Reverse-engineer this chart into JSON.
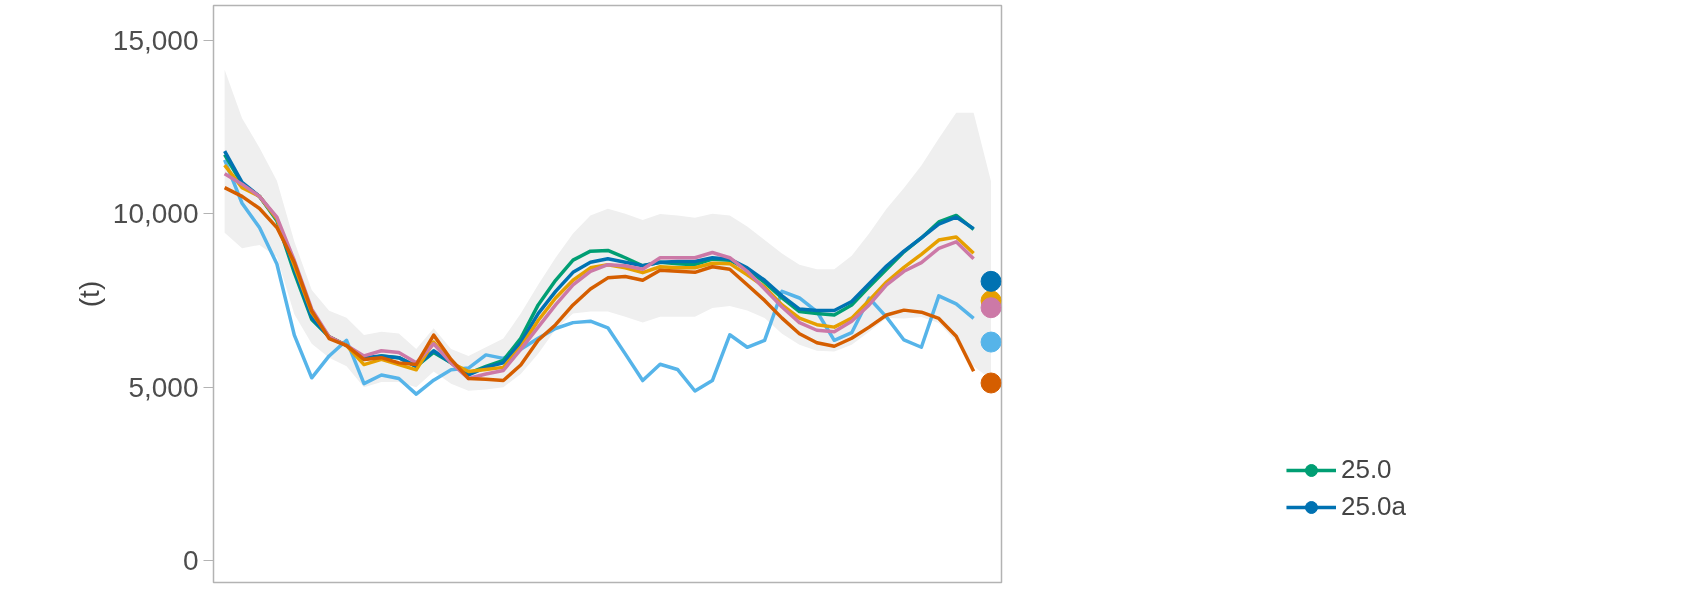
{
  "chart_data": {
    "type": "line",
    "ylabel": "(t)",
    "categories": [
      null,
      null,
      null,
      null,
      null,
      null,
      null,
      null,
      null,
      null,
      null,
      null,
      null,
      null,
      null,
      null,
      null,
      null,
      null,
      null,
      null,
      null,
      null,
      null,
      null,
      null,
      null,
      null,
      null,
      null,
      null,
      null,
      null,
      null,
      null,
      null,
      null,
      null,
      null,
      null,
      null,
      null,
      null,
      null,
      null
    ],
    "ylim": [
      -630,
      16000
    ],
    "yticks": [
      0,
      {
        "value": 5000,
        "label": "5,000"
      },
      {
        "value": 10000,
        "label": "10,000"
      },
      {
        "value": 15000,
        "label": "15,000"
      }
    ],
    "grid": false,
    "legend": "bottom right",
    "tick_labels": "y",
    "series": [
      {
        "color": "#56b4e9",
        "values": [
          11550,
          10300,
          9600,
          8550,
          6500,
          5270,
          5900,
          6350,
          5100,
          5350,
          5250,
          4800,
          5200,
          5500,
          5550,
          5930,
          5830,
          6090,
          6410,
          6690,
          6860,
          6900,
          6710,
          5960,
          5190,
          5660,
          5510,
          4890,
          5190,
          6510,
          6150,
          6350,
          7760,
          7570,
          7180,
          6350,
          6570,
          7570,
          7020,
          6360,
          6150,
          7630,
          7400,
          6980,
          null
        ],
        "lower": [
          9450,
          9000,
          9100,
          8750,
          7100,
          6250,
          5850,
          5600,
          5000,
          5150,
          5150,
          5000,
          5450,
          5100,
          4900,
          4930,
          5000,
          5380,
          5960,
          6670,
          7120,
          7180,
          7180,
          7030,
          6860,
          7030,
          7030,
          7030,
          7280,
          7340,
          7210,
          6990,
          6540,
          6220,
          6050,
          6030,
          6220,
          6600,
          6990,
          6980,
          7020,
          6850,
          6310,
          5600,
          5220
        ],
        "upper": [
          14150,
          12750,
          11900,
          10950,
          9200,
          7800,
          7200,
          7000,
          6500,
          6600,
          6550,
          6100,
          6700,
          6100,
          5900,
          6150,
          6400,
          7120,
          7950,
          8730,
          9430,
          9950,
          10140,
          10000,
          9820,
          9990,
          9950,
          9880,
          10000,
          9950,
          9630,
          9240,
          8850,
          8530,
          8400,
          8400,
          8790,
          9430,
          10140,
          10740,
          11390,
          12170,
          12910,
          12910,
          10930
        ]
      },
      {
        "name": "25.0",
        "color": "#009e73",
        "values": [
          11700,
          10850,
          10500,
          9800,
          8300,
          6950,
          6450,
          6200,
          5800,
          5900,
          5850,
          5600,
          6000,
          5700,
          5400,
          5600,
          5770,
          6410,
          7370,
          8080,
          8660,
          8920,
          8940,
          8730,
          8500,
          8600,
          8560,
          8530,
          8690,
          8660,
          8400,
          8020,
          7570,
          7180,
          7120,
          7080,
          7370,
          7890,
          8400,
          8900,
          9300,
          9760,
          9950,
          9550,
          null
        ]
      },
      {
        "name": "25.0a",
        "color": "#0072b2",
        "values": [
          11800,
          10900,
          10500,
          9850,
          8400,
          7000,
          6450,
          6200,
          5850,
          5900,
          5850,
          5600,
          6050,
          5700,
          5350,
          5570,
          5700,
          6280,
          7120,
          7760,
          8310,
          8600,
          8700,
          8600,
          8500,
          8600,
          8620,
          8620,
          8730,
          8690,
          8440,
          8080,
          7630,
          7250,
          7210,
          7210,
          7470,
          7980,
          8490,
          8920,
          9300,
          9700,
          9900,
          9570,
          null
        ]
      },
      {
        "color": "#e69f00",
        "values": [
          11400,
          10750,
          10500,
          9850,
          8500,
          7150,
          6450,
          6200,
          5650,
          5800,
          5650,
          5500,
          6300,
          5700,
          5450,
          5510,
          5570,
          6150,
          6920,
          7570,
          8080,
          8440,
          8530,
          8440,
          8300,
          8470,
          8440,
          8440,
          8570,
          8560,
          8240,
          7890,
          7370,
          6990,
          6800,
          6730,
          6990,
          7500,
          8030,
          8450,
          8830,
          9240,
          9330,
          8860,
          null
        ]
      },
      {
        "color": "#cc79a7",
        "values": [
          11150,
          10850,
          10500,
          9900,
          8650,
          7250,
          6450,
          6200,
          5900,
          6050,
          6000,
          5700,
          6250,
          5700,
          5250,
          5380,
          5480,
          6090,
          6730,
          7370,
          7950,
          8340,
          8530,
          8500,
          8400,
          8730,
          8730,
          8730,
          8880,
          8730,
          8340,
          7830,
          7310,
          6860,
          6640,
          6600,
          6900,
          7370,
          7950,
          8340,
          8590,
          9000,
          9190,
          8700,
          null
        ]
      },
      {
        "color": "#d55e00",
        "values": [
          10750,
          10500,
          10150,
          9600,
          8600,
          7200,
          6400,
          6200,
          5800,
          5850,
          5700,
          5650,
          6500,
          5800,
          5250,
          5230,
          5190,
          5640,
          6350,
          6800,
          7370,
          7830,
          8150,
          8190,
          8080,
          8370,
          8340,
          8310,
          8470,
          8400,
          7950,
          7500,
          6990,
          6540,
          6280,
          6180,
          6410,
          6730,
          7080,
          7220,
          7160,
          6980,
          6470,
          5460,
          null
        ]
      },
      {
        "type": "scatter",
        "marker": "circle",
        "color": "#56b4e9",
        "values": [
          null,
          null,
          null,
          null,
          null,
          null,
          null,
          null,
          null,
          null,
          null,
          null,
          null,
          null,
          null,
          null,
          null,
          null,
          null,
          null,
          null,
          null,
          null,
          null,
          null,
          null,
          null,
          null,
          null,
          null,
          null,
          null,
          null,
          null,
          null,
          null,
          null,
          null,
          null,
          null,
          null,
          null,
          null,
          null,
          6300
        ]
      },
      {
        "type": "scatter",
        "marker": "circle",
        "color": "#d55e00",
        "values": [
          null,
          null,
          null,
          null,
          null,
          null,
          null,
          null,
          null,
          null,
          null,
          null,
          null,
          null,
          null,
          null,
          null,
          null,
          null,
          null,
          null,
          null,
          null,
          null,
          null,
          null,
          null,
          null,
          null,
          null,
          null,
          null,
          null,
          null,
          null,
          null,
          null,
          null,
          null,
          null,
          null,
          null,
          null,
          null,
          5120
        ]
      },
      {
        "type": "scatter",
        "marker": "circle",
        "color": "#e69f00",
        "values": [
          null,
          null,
          null,
          null,
          null,
          null,
          null,
          null,
          null,
          null,
          null,
          null,
          null,
          null,
          null,
          null,
          null,
          null,
          null,
          null,
          null,
          null,
          null,
          null,
          null,
          null,
          null,
          null,
          null,
          null,
          null,
          null,
          null,
          null,
          null,
          null,
          null,
          null,
          null,
          null,
          null,
          null,
          null,
          null,
          7490
        ]
      },
      {
        "type": "scatter",
        "marker": "circle",
        "color": "#cc79a7",
        "values": [
          null,
          null,
          null,
          null,
          null,
          null,
          null,
          null,
          null,
          null,
          null,
          null,
          null,
          null,
          null,
          null,
          null,
          null,
          null,
          null,
          null,
          null,
          null,
          null,
          null,
          null,
          null,
          null,
          null,
          null,
          null,
          null,
          null,
          null,
          null,
          null,
          null,
          null,
          null,
          null,
          null,
          null,
          null,
          null,
          7290
        ]
      },
      {
        "type": "scatter",
        "marker": "circle",
        "color": "#0072b2",
        "values": [
          null,
          null,
          null,
          null,
          null,
          null,
          null,
          null,
          null,
          null,
          null,
          null,
          null,
          null,
          null,
          null,
          null,
          null,
          null,
          null,
          null,
          null,
          null,
          null,
          null,
          null,
          null,
          null,
          null,
          null,
          null,
          null,
          null,
          null,
          null,
          null,
          null,
          null,
          null,
          null,
          null,
          null,
          null,
          null,
          8050
        ]
      }
    ]
  }
}
